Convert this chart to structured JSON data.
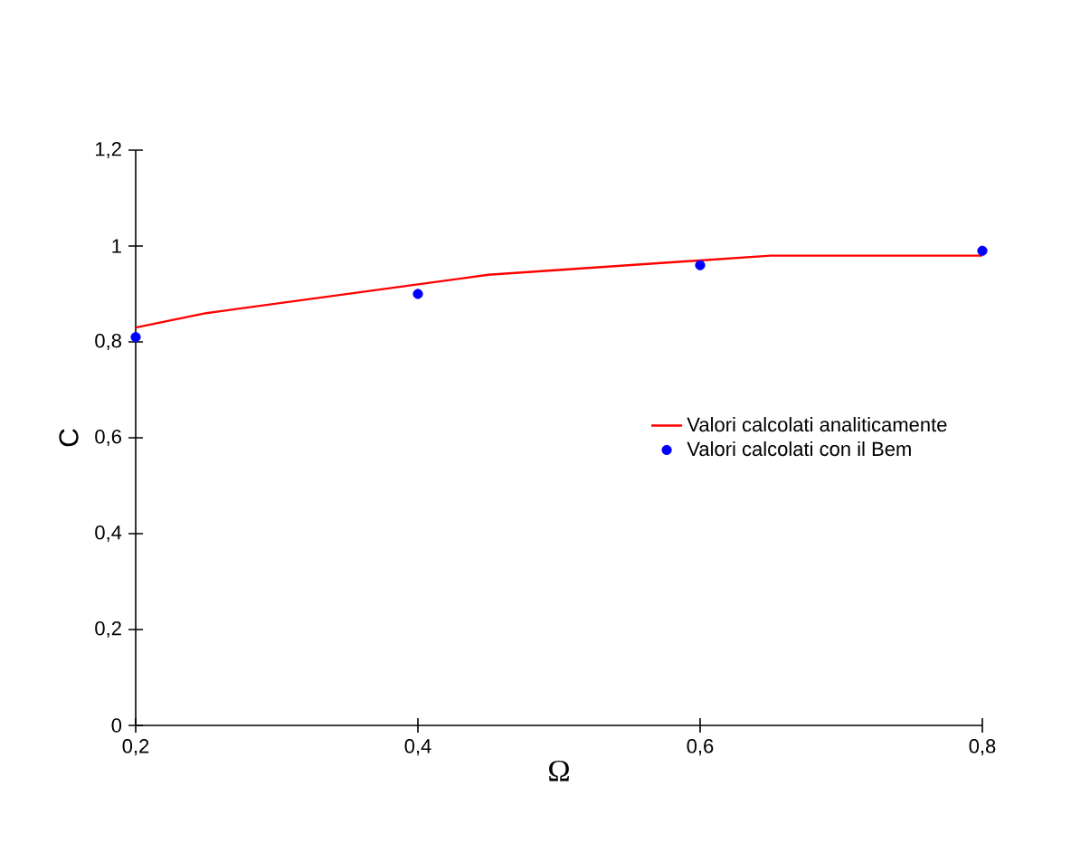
{
  "chart_data": {
    "type": "line",
    "xlabel": "Ω",
    "ylabel": "C",
    "xlim": [
      0.2,
      0.8
    ],
    "ylim": [
      0,
      1.2
    ],
    "xticks": [
      {
        "value": 0.2,
        "label": "0,2"
      },
      {
        "value": 0.4,
        "label": "0,4"
      },
      {
        "value": 0.6,
        "label": "0,6"
      },
      {
        "value": 0.8,
        "label": "0,8"
      }
    ],
    "yticks": [
      0,
      {
        "value": 0.2,
        "label": "0,2"
      },
      {
        "value": 0.4,
        "label": "0,4"
      },
      {
        "value": 0.6,
        "label": "0,6"
      },
      {
        "value": 0.8,
        "label": "0,8"
      },
      1,
      {
        "value": 1.2,
        "label": "1,2"
      }
    ],
    "grid": false,
    "legend": "right",
    "series": [
      {
        "name": "Valori calcolati analiticamente",
        "color": "#ff0000",
        "marker": "none",
        "line_style": "solid",
        "x": [
          0.2,
          0.25,
          0.3,
          0.35,
          0.4,
          0.45,
          0.5,
          0.55,
          0.6,
          0.65,
          0.75,
          0.8
        ],
        "values": [
          0.83,
          0.86,
          0.88,
          0.9,
          0.92,
          0.94,
          0.95,
          0.96,
          0.97,
          0.98,
          0.98,
          0.98
        ]
      },
      {
        "name": "Valori calcolati con il Bem",
        "type": "scatter",
        "color": "#0000ff",
        "marker": "circle",
        "x": [
          0.2,
          0.4,
          0.6,
          0.8
        ],
        "values": [
          0.81,
          0.9,
          0.96,
          0.99
        ]
      }
    ]
  }
}
